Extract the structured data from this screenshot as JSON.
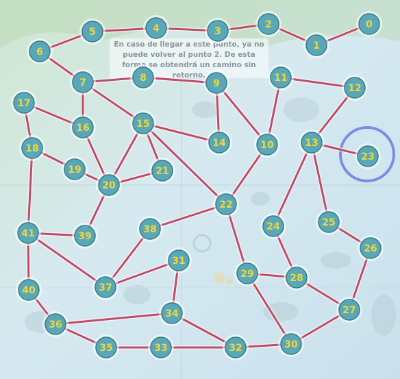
{
  "board": {
    "note_text": "En caso de llegar a este punto, ya no puede volver al punto 2. De esta forma se obtendrá un camino sin retorno.",
    "start_node": "0",
    "highlighted_node": "23",
    "colors": {
      "path": "#c04a68",
      "node_fill": "#5aa8b7",
      "node_stroke": "#2f7e8c",
      "label": "#f0d63a",
      "highlight_ring": "#7e8ae8",
      "background": "#d8e8ef"
    },
    "nodes": [
      "0",
      "1",
      "2",
      "3",
      "4",
      "5",
      "6",
      "7",
      "8",
      "9",
      "10",
      "11",
      "12",
      "13",
      "14",
      "15",
      "16",
      "17",
      "18",
      "19",
      "20",
      "21",
      "22",
      "23",
      "24",
      "25",
      "26",
      "27",
      "28",
      "29",
      "30",
      "31",
      "32",
      "33",
      "34",
      "35",
      "36",
      "37",
      "38",
      "39",
      "40",
      "41"
    ],
    "edges": [
      [
        "0",
        "1"
      ],
      [
        "1",
        "2"
      ],
      [
        "2",
        "3"
      ],
      [
        "3",
        "4"
      ],
      [
        "4",
        "5"
      ],
      [
        "5",
        "6"
      ],
      [
        "6",
        "7"
      ],
      [
        "7",
        "8"
      ],
      [
        "8",
        "9"
      ],
      [
        "9",
        "14"
      ],
      [
        "9",
        "10"
      ],
      [
        "10",
        "11"
      ],
      [
        "10",
        "22"
      ],
      [
        "11",
        "12"
      ],
      [
        "12",
        "13"
      ],
      [
        "13",
        "23"
      ],
      [
        "13",
        "24"
      ],
      [
        "13",
        "25"
      ],
      [
        "25",
        "26"
      ],
      [
        "26",
        "27"
      ],
      [
        "27",
        "28"
      ],
      [
        "27",
        "30"
      ],
      [
        "28",
        "24"
      ],
      [
        "28",
        "29"
      ],
      [
        "29",
        "30"
      ],
      [
        "29",
        "22"
      ],
      [
        "30",
        "32"
      ],
      [
        "32",
        "33"
      ],
      [
        "33",
        "35"
      ],
      [
        "35",
        "36"
      ],
      [
        "36",
        "40"
      ],
      [
        "40",
        "41"
      ],
      [
        "41",
        "18"
      ],
      [
        "18",
        "17"
      ],
      [
        "17",
        "16"
      ],
      [
        "16",
        "7"
      ],
      [
        "16",
        "20"
      ],
      [
        "18",
        "19"
      ],
      [
        "19",
        "20"
      ],
      [
        "20",
        "21"
      ],
      [
        "20",
        "15"
      ],
      [
        "20",
        "39"
      ],
      [
        "39",
        "41"
      ],
      [
        "41",
        "37"
      ],
      [
        "37",
        "38"
      ],
      [
        "37",
        "31"
      ],
      [
        "31",
        "34"
      ],
      [
        "34",
        "36"
      ],
      [
        "34",
        "32"
      ],
      [
        "38",
        "22"
      ],
      [
        "22",
        "15"
      ],
      [
        "15",
        "14"
      ],
      [
        "15",
        "21"
      ],
      [
        "15",
        "7"
      ]
    ]
  }
}
